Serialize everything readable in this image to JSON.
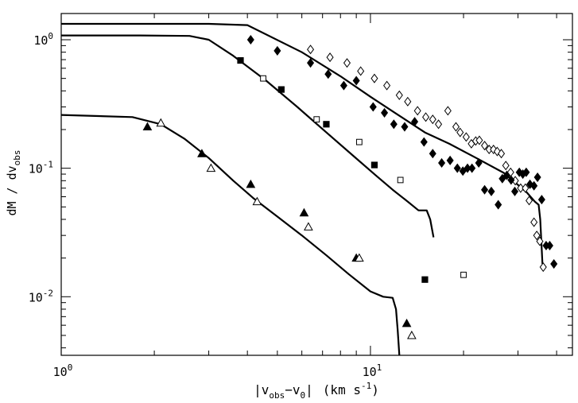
{
  "chart_data": {
    "type": "scatter",
    "title": "",
    "xlabel": "|v_obs − v_0| (km s⁻¹)",
    "ylabel": "dM / dv_obs",
    "xscale": "log",
    "yscale": "log",
    "xlim": [
      1.0,
      45.0
    ],
    "ylim": [
      0.0035,
      1.6
    ],
    "grid": false,
    "x_ticks": [
      {
        "value": 1,
        "label_base": "10",
        "label_exp": "0"
      },
      {
        "value": 10,
        "label_base": "10",
        "label_exp": "1"
      }
    ],
    "y_ticks": [
      {
        "value": 1,
        "label_base": "10",
        "label_exp": "0"
      },
      {
        "value": 0.1,
        "label_base": "10",
        "label_exp": "-1"
      },
      {
        "value": 0.01,
        "label_base": "10",
        "label_exp": "-2"
      }
    ],
    "x_label_parts": {
      "open": "|v",
      "sub1": "obs",
      "mid": "−v",
      "sub2": "0",
      "close": "|",
      "units_open": "(km s",
      "units_exp": "-1",
      "units_close": ")"
    },
    "y_label_parts": {
      "main": "dM / dv",
      "sub": "obs"
    },
    "series": [
      {
        "marker": "line",
        "color": "#000000",
        "x": [
          1.0,
          3.0,
          4.0,
          6.0,
          8.0,
          10.0,
          12.0,
          15.0,
          18.0,
          22.0,
          27.0,
          32.0,
          34.0,
          35.0,
          35.4,
          36.0
        ],
        "y": [
          1.33,
          1.33,
          1.3,
          0.8,
          0.52,
          0.36,
          0.27,
          0.19,
          0.155,
          0.12,
          0.092,
          0.065,
          0.055,
          0.052,
          0.04,
          0.018
        ]
      },
      {
        "marker": "line",
        "color": "#000000",
        "x": [
          1.0,
          1.8,
          2.6,
          3.0,
          3.6,
          4.6,
          5.8,
          7.2,
          8.8,
          10.4,
          11.8,
          13.2,
          14.3,
          15.2,
          15.6,
          16.0
        ],
        "y": [
          1.08,
          1.08,
          1.07,
          1.0,
          0.75,
          0.48,
          0.3,
          0.19,
          0.125,
          0.088,
          0.068,
          0.055,
          0.047,
          0.047,
          0.04,
          0.029
        ]
      },
      {
        "marker": "line",
        "color": "#000000",
        "x": [
          1.0,
          1.7,
          2.1,
          2.5,
          3.0,
          3.6,
          4.2,
          5.0,
          6.0,
          7.2,
          8.5,
          10.0,
          11.0,
          11.8,
          12.1,
          12.25,
          12.4
        ],
        "y": [
          0.26,
          0.25,
          0.22,
          0.17,
          0.12,
          0.08,
          0.058,
          0.042,
          0.03,
          0.021,
          0.015,
          0.011,
          0.01,
          0.0098,
          0.008,
          0.0055,
          0.0035
        ]
      },
      {
        "marker": "open-diamond",
        "color": "#000000",
        "x": [
          6.4,
          7.4,
          8.4,
          9.3,
          10.3,
          11.3,
          12.4,
          13.2,
          14.2,
          15.1,
          15.9,
          16.6,
          17.8,
          18.9,
          19.5,
          20.4,
          21.2,
          21.9,
          22.5,
          23.4,
          24.2,
          25.0,
          25.7,
          26.5,
          27.4,
          28.4,
          29.4,
          30.6,
          31.7,
          32.6,
          33.8,
          34.5,
          35.3,
          36.2
        ],
        "y": [
          0.84,
          0.73,
          0.66,
          0.57,
          0.5,
          0.44,
          0.37,
          0.33,
          0.28,
          0.25,
          0.24,
          0.22,
          0.28,
          0.21,
          0.19,
          0.175,
          0.155,
          0.163,
          0.165,
          0.15,
          0.14,
          0.14,
          0.135,
          0.13,
          0.105,
          0.093,
          0.08,
          0.07,
          0.07,
          0.056,
          0.038,
          0.03,
          0.027,
          0.017
        ]
      },
      {
        "marker": "filled-diamond",
        "color": "#000000",
        "x": [
          4.1,
          5.0,
          6.4,
          7.3,
          8.2,
          9.0,
          10.2,
          11.1,
          11.9,
          12.9,
          13.9,
          14.9,
          15.9,
          17.0,
          18.1,
          19.1,
          19.9,
          20.6,
          21.3,
          22.4,
          23.4,
          24.6,
          25.9,
          26.7,
          27.6,
          28.5,
          29.3,
          30.3,
          31.1,
          31.9,
          32.8,
          33.8,
          34.7,
          35.8,
          37.0,
          38.0,
          39.2
        ],
        "y": [
          1.0,
          0.82,
          0.66,
          0.54,
          0.44,
          0.48,
          0.3,
          0.27,
          0.22,
          0.21,
          0.23,
          0.16,
          0.13,
          0.11,
          0.115,
          0.1,
          0.095,
          0.1,
          0.1,
          0.11,
          0.068,
          0.066,
          0.052,
          0.083,
          0.088,
          0.081,
          0.066,
          0.093,
          0.09,
          0.093,
          0.075,
          0.073,
          0.085,
          0.057,
          0.025,
          0.025,
          0.018
        ]
      },
      {
        "marker": "filled-square",
        "color": "#000000",
        "x": [
          3.8,
          5.15,
          7.2,
          10.3,
          15.0
        ],
        "y": [
          0.69,
          0.41,
          0.22,
          0.106,
          0.0136
        ]
      },
      {
        "marker": "open-square",
        "color": "#000000",
        "x": [
          4.5,
          6.7,
          9.2,
          12.5,
          20.0
        ],
        "y": [
          0.5,
          0.24,
          0.16,
          0.081,
          0.0148
        ]
      },
      {
        "marker": "filled-triangle",
        "color": "#000000",
        "x": [
          1.9,
          2.85,
          4.1,
          6.1,
          9.0,
          13.1
        ],
        "y": [
          0.21,
          0.13,
          0.075,
          0.045,
          0.02,
          0.0062
        ]
      },
      {
        "marker": "open-triangle",
        "color": "#000000",
        "x": [
          2.1,
          3.05,
          4.3,
          6.3,
          9.2,
          13.6
        ],
        "y": [
          0.225,
          0.1,
          0.055,
          0.035,
          0.02,
          0.005
        ]
      }
    ]
  }
}
